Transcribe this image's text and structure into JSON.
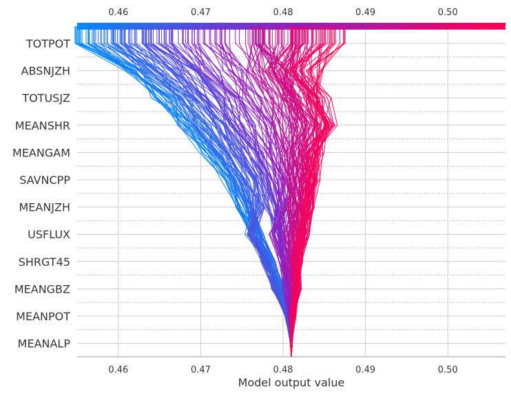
{
  "chart_data": {
    "type": "shap-decision-plot",
    "title": "",
    "xlabel": "Model output value",
    "ylabel": "",
    "xlim": [
      0.455,
      0.507
    ],
    "base_value": 0.481,
    "x_ticks": [
      0.46,
      0.47,
      0.48,
      0.49,
      0.5
    ],
    "x_tick_labels": [
      "0.46",
      "0.47",
      "0.48",
      "0.49",
      "0.50"
    ],
    "features_top_to_bottom": [
      "TOTPOT",
      "ABSNJZH",
      "TOTUSJZ",
      "MEANSHR",
      "MEANGAM",
      "SAVNCPP",
      "MEANJZH",
      "USFLUX",
      "SHRGT45",
      "MEANGBZ",
      "MEANPOT",
      "MEANALP"
    ],
    "colormap": {
      "low_color": "#008bfb",
      "mid_color": "#8f1fc4",
      "high_color": "#ff0051"
    },
    "representative_paths": [
      {
        "name": "low-1",
        "values": [
          0.4565,
          0.4615,
          0.4655,
          0.4685,
          0.471,
          0.4735,
          0.475,
          0.4765,
          0.478,
          0.4795,
          0.4805,
          0.481
        ]
      },
      {
        "name": "low-2",
        "values": [
          0.459,
          0.464,
          0.4675,
          0.47,
          0.4725,
          0.4745,
          0.476,
          0.477,
          0.4785,
          0.4797,
          0.4806,
          0.481
        ]
      },
      {
        "name": "low-3",
        "values": [
          0.462,
          0.466,
          0.4695,
          0.472,
          0.474,
          0.476,
          0.477,
          0.476,
          0.4778,
          0.479,
          0.4805,
          0.481
        ]
      },
      {
        "name": "low-4",
        "values": [
          0.465,
          0.4685,
          0.4715,
          0.474,
          0.476,
          0.4775,
          0.4785,
          0.4795,
          0.48,
          0.4802,
          0.4808,
          0.481
        ]
      },
      {
        "name": "low-mid-1",
        "values": [
          0.468,
          0.471,
          0.4735,
          0.4755,
          0.4775,
          0.479,
          0.4795,
          0.48,
          0.4805,
          0.4806,
          0.4809,
          0.481
        ]
      },
      {
        "name": "mid-1",
        "values": [
          0.472,
          0.474,
          0.476,
          0.478,
          0.479,
          0.48,
          0.48,
          0.479,
          0.48,
          0.4805,
          0.4808,
          0.481
        ]
      },
      {
        "name": "mid-2",
        "values": [
          0.476,
          0.477,
          0.479,
          0.48,
          0.4805,
          0.481,
          0.4815,
          0.4805,
          0.4808,
          0.4812,
          0.4811,
          0.481
        ]
      },
      {
        "name": "mid-3",
        "values": [
          0.478,
          0.48,
          0.481,
          0.482,
          0.4815,
          0.4815,
          0.481,
          0.4815,
          0.4812,
          0.4812,
          0.4811,
          0.481
        ]
      },
      {
        "name": "high-mid-1",
        "values": [
          0.48,
          0.479,
          0.481,
          0.4825,
          0.482,
          0.482,
          0.4818,
          0.4815,
          0.4812,
          0.4815,
          0.4812,
          0.481
        ]
      },
      {
        "name": "high-mid-2",
        "values": [
          0.481,
          0.48,
          0.482,
          0.4835,
          0.483,
          0.4828,
          0.4825,
          0.482,
          0.4815,
          0.4818,
          0.4812,
          0.481
        ]
      },
      {
        "name": "high-1",
        "values": [
          0.4825,
          0.481,
          0.483,
          0.4845,
          0.483,
          0.4835,
          0.483,
          0.4825,
          0.4818,
          0.4818,
          0.4813,
          0.481
        ]
      },
      {
        "name": "high-2",
        "values": [
          0.484,
          0.482,
          0.484,
          0.485,
          0.4835,
          0.483,
          0.4828,
          0.4822,
          0.4817,
          0.4817,
          0.4812,
          0.481
        ]
      },
      {
        "name": "high-3",
        "values": [
          0.486,
          0.4835,
          0.4845,
          0.4855,
          0.484,
          0.4835,
          0.483,
          0.4825,
          0.4818,
          0.4816,
          0.4812,
          0.481
        ]
      }
    ]
  }
}
